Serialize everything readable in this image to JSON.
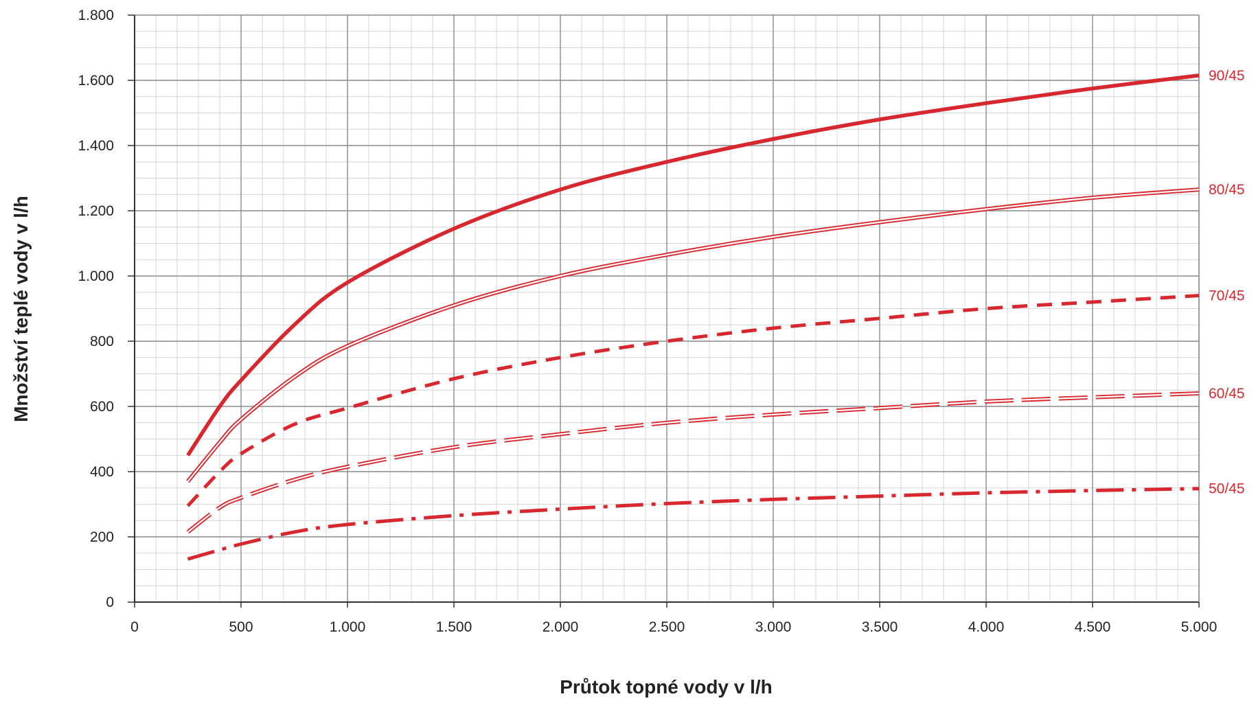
{
  "chart_data": {
    "type": "line",
    "xlabel": "Průtok topné vody v l/h",
    "ylabel": "Množství teplé vody v l/h",
    "xlim": [
      0,
      5000
    ],
    "ylim": [
      0,
      1800
    ],
    "x_ticks": [
      0,
      500,
      1000,
      1500,
      2000,
      2500,
      3000,
      3500,
      4000,
      4500,
      5000
    ],
    "x_tick_labels": [
      "0",
      "500",
      "1.000",
      "1.500",
      "2.000",
      "2.500",
      "3.000",
      "3.500",
      "4.000",
      "4.500",
      "5.000"
    ],
    "y_ticks": [
      0,
      200,
      400,
      600,
      800,
      1000,
      1200,
      1400,
      1600,
      1800
    ],
    "y_tick_labels": [
      "0",
      "200",
      "400",
      "600",
      "800",
      "1.000",
      "1.200",
      "1.400",
      "1.600",
      "1.800"
    ],
    "grid": true,
    "line_color": "#d7282f",
    "series": [
      {
        "name": "90/45",
        "style": "solid-thick",
        "x": [
          250,
          400,
          500,
          750,
          1000,
          1500,
          2000,
          2500,
          3000,
          3500,
          4000,
          4500,
          5000
        ],
        "y": [
          450,
          600,
          680,
          850,
          980,
          1145,
          1265,
          1350,
          1420,
          1480,
          1530,
          1575,
          1615
        ]
      },
      {
        "name": "80/45",
        "style": "double",
        "x": [
          250,
          400,
          500,
          750,
          1000,
          1500,
          2000,
          2500,
          3000,
          3500,
          4000,
          4500,
          5000
        ],
        "y": [
          370,
          490,
          560,
          690,
          785,
          910,
          1000,
          1065,
          1120,
          1165,
          1205,
          1240,
          1265
        ]
      },
      {
        "name": "70/45",
        "style": "dashed",
        "x": [
          250,
          400,
          500,
          750,
          1000,
          1500,
          2000,
          2500,
          3000,
          3500,
          4000,
          4500,
          5000
        ],
        "y": [
          295,
          400,
          455,
          545,
          595,
          685,
          750,
          800,
          840,
          870,
          900,
          920,
          940
        ]
      },
      {
        "name": "60/45",
        "style": "double-dashed",
        "x": [
          250,
          400,
          500,
          750,
          1000,
          1500,
          2000,
          2500,
          3000,
          3500,
          4000,
          4500,
          5000
        ],
        "y": [
          215,
          290,
          320,
          375,
          415,
          475,
          515,
          550,
          575,
          595,
          615,
          628,
          640
        ]
      },
      {
        "name": "50/45",
        "style": "dash-dot",
        "x": [
          250,
          400,
          500,
          750,
          1000,
          1500,
          2000,
          2500,
          3000,
          3500,
          4000,
          4500,
          5000
        ],
        "y": [
          132,
          160,
          178,
          215,
          238,
          265,
          285,
          302,
          315,
          325,
          335,
          342,
          348
        ]
      }
    ]
  }
}
